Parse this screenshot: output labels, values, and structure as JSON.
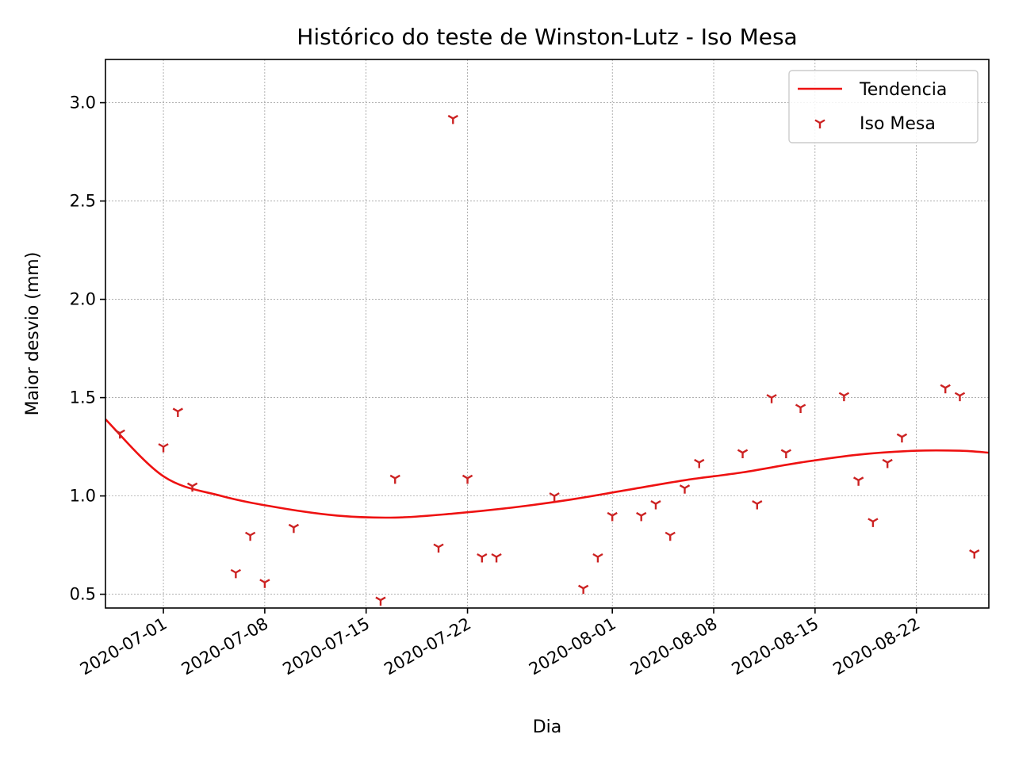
{
  "chart_data": {
    "type": "scatter",
    "title": "Histórico do teste de Winston-Lutz - Iso Mesa",
    "xlabel": "Dia",
    "ylabel": "Maior desvio (mm)",
    "xlim": [
      "2020-06-27",
      "2020-08-27"
    ],
    "ylim": [
      0.43,
      3.22
    ],
    "grid": true,
    "legend_position": "top-right",
    "x_ticks": [
      "2020-07-01",
      "2020-07-08",
      "2020-07-15",
      "2020-07-22",
      "2020-08-01",
      "2020-08-08",
      "2020-08-15",
      "2020-08-22"
    ],
    "y_ticks": [
      "0.5",
      "1.0",
      "1.5",
      "2.0",
      "2.5",
      "3.0"
    ],
    "series": [
      {
        "name": "Tendencia",
        "kind": "line",
        "color": "#ee1111",
        "x": [
          "2020-06-27",
          "2020-07-01",
          "2020-07-05",
          "2020-07-09",
          "2020-07-13",
          "2020-07-17",
          "2020-07-21",
          "2020-07-25",
          "2020-07-29",
          "2020-08-02",
          "2020-08-06",
          "2020-08-10",
          "2020-08-14",
          "2020-08-18",
          "2020-08-22",
          "2020-08-25",
          "2020-08-27"
        ],
        "y": [
          1.39,
          1.1,
          1.0,
          0.94,
          0.9,
          0.89,
          0.91,
          0.94,
          0.98,
          1.03,
          1.08,
          1.12,
          1.17,
          1.21,
          1.23,
          1.23,
          1.22
        ]
      },
      {
        "name": "Iso Mesa",
        "kind": "scatter",
        "marker": "tri_down",
        "color": "#cc2222",
        "x": [
          "2020-06-28",
          "2020-07-01",
          "2020-07-02",
          "2020-07-03",
          "2020-07-06",
          "2020-07-07",
          "2020-07-08",
          "2020-07-10",
          "2020-07-16",
          "2020-07-17",
          "2020-07-20",
          "2020-07-21",
          "2020-07-22",
          "2020-07-23",
          "2020-07-24",
          "2020-07-28",
          "2020-07-30",
          "2020-07-31",
          "2020-08-01",
          "2020-08-03",
          "2020-08-04",
          "2020-08-05",
          "2020-08-06",
          "2020-08-07",
          "2020-08-10",
          "2020-08-11",
          "2020-08-12",
          "2020-08-13",
          "2020-08-14",
          "2020-08-17",
          "2020-08-18",
          "2020-08-19",
          "2020-08-20",
          "2020-08-21",
          "2020-08-24",
          "2020-08-25",
          "2020-08-26"
        ],
        "y": [
          1.32,
          1.25,
          1.43,
          1.05,
          0.61,
          0.8,
          0.56,
          0.84,
          0.47,
          1.09,
          0.74,
          2.92,
          1.09,
          0.69,
          0.69,
          1.0,
          0.53,
          0.69,
          0.9,
          0.9,
          0.96,
          0.8,
          1.04,
          1.17,
          1.22,
          0.96,
          1.5,
          1.22,
          1.45,
          1.51,
          1.08,
          0.87,
          1.17,
          1.3,
          1.55,
          1.51,
          0.71
        ]
      }
    ]
  }
}
